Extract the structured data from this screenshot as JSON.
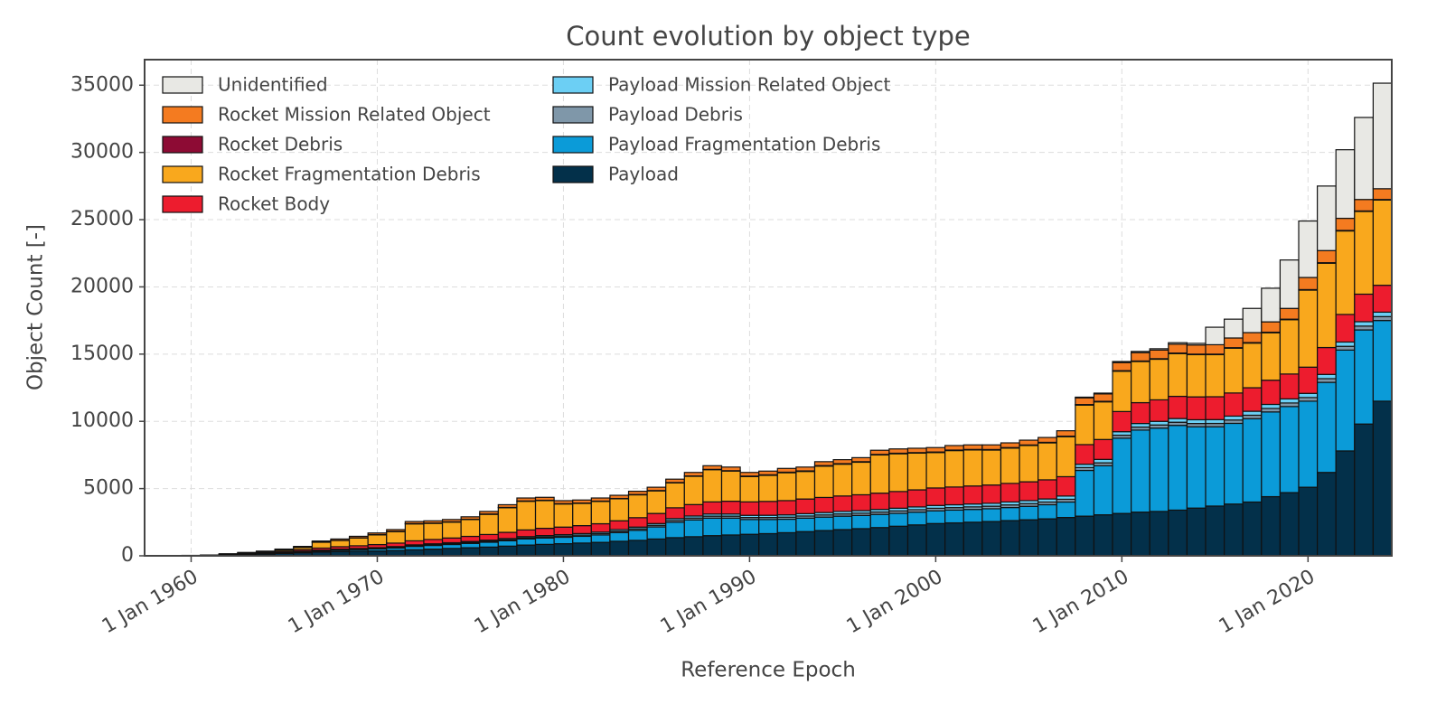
{
  "chart_data": {
    "type": "stacked_bar",
    "title": "Count evolution by object type",
    "xlabel": "Reference Epoch",
    "ylabel": "Object Count [-]",
    "x": [
      1958,
      1959,
      1960,
      1961,
      1962,
      1963,
      1964,
      1965,
      1966,
      1967,
      1968,
      1969,
      1970,
      1971,
      1972,
      1973,
      1974,
      1975,
      1976,
      1977,
      1978,
      1979,
      1980,
      1981,
      1982,
      1983,
      1984,
      1985,
      1986,
      1987,
      1988,
      1989,
      1990,
      1991,
      1992,
      1993,
      1994,
      1995,
      1996,
      1997,
      1998,
      1999,
      2000,
      2001,
      2002,
      2003,
      2004,
      2005,
      2006,
      2007,
      2008,
      2009,
      2010,
      2011,
      2012,
      2013,
      2014,
      2015,
      2016,
      2017,
      2018,
      2019,
      2020,
      2021,
      2022,
      2023,
      2024
    ],
    "xlim": [
      1957.5,
      2024.5
    ],
    "xticks": [
      {
        "value": 1960,
        "label": "1 Jan 1960"
      },
      {
        "value": 1970,
        "label": "1 Jan 1970"
      },
      {
        "value": 1980,
        "label": "1 Jan 1980"
      },
      {
        "value": 1990,
        "label": "1 Jan 1990"
      },
      {
        "value": 2000,
        "label": "1 Jan 2000"
      },
      {
        "value": 2010,
        "label": "1 Jan 2010"
      },
      {
        "value": 2020,
        "label": "1 Jan 2020"
      }
    ],
    "ylim": [
      0,
      36900
    ],
    "yticks": [
      0,
      5000,
      10000,
      15000,
      20000,
      25000,
      30000,
      35000
    ],
    "grid": true,
    "legend": "upper left",
    "legend_ncol": 2,
    "series": [
      {
        "name": "Payload",
        "color": "#03304a",
        "values": [
          3,
          8,
          15,
          30,
          60,
          90,
          130,
          180,
          230,
          280,
          320,
          340,
          360,
          400,
          450,
          500,
          550,
          600,
          650,
          720,
          800,
          850,
          900,
          950,
          1000,
          1080,
          1150,
          1250,
          1350,
          1420,
          1500,
          1550,
          1600,
          1650,
          1720,
          1800,
          1880,
          1950,
          2020,
          2100,
          2200,
          2300,
          2400,
          2450,
          2500,
          2550,
          2620,
          2680,
          2750,
          2850,
          2950,
          3050,
          3150,
          3250,
          3300,
          3400,
          3550,
          3700,
          3850,
          4000,
          4400,
          4700,
          5100,
          6200,
          7800,
          9800,
          11500
        ]
      },
      {
        "name": "Payload Fragmentation Debris",
        "color": "#0b9bd8",
        "values": [
          0,
          0,
          0,
          0,
          10,
          20,
          30,
          40,
          60,
          80,
          100,
          120,
          150,
          180,
          250,
          270,
          290,
          320,
          360,
          400,
          450,
          470,
          480,
          500,
          550,
          650,
          750,
          900,
          1150,
          1250,
          1300,
          1250,
          1100,
          1050,
          1000,
          1000,
          1000,
          1000,
          980,
          980,
          960,
          950,
          950,
          950,
          950,
          950,
          970,
          1000,
          1050,
          1150,
          3400,
          3650,
          5600,
          6100,
          6200,
          6300,
          6050,
          5900,
          6000,
          6200,
          6300,
          6400,
          6400,
          6700,
          7500,
          7000,
          6000
        ]
      },
      {
        "name": "Payload Debris",
        "color": "#7f97a9",
        "values": [
          0,
          0,
          0,
          0,
          0,
          0,
          5,
          10,
          20,
          25,
          30,
          35,
          40,
          45,
          50,
          55,
          60,
          65,
          70,
          75,
          80,
          85,
          90,
          95,
          100,
          105,
          110,
          120,
          130,
          140,
          150,
          150,
          150,
          150,
          155,
          160,
          160,
          165,
          170,
          175,
          180,
          180,
          185,
          185,
          190,
          190,
          195,
          200,
          200,
          205,
          210,
          215,
          220,
          225,
          230,
          235,
          240,
          245,
          250,
          255,
          260,
          265,
          270,
          275,
          280,
          285,
          290
        ]
      },
      {
        "name": "Payload Mission Related Object",
        "color": "#6ccff4",
        "values": [
          2,
          4,
          6,
          10,
          15,
          20,
          25,
          30,
          35,
          40,
          45,
          50,
          55,
          60,
          65,
          70,
          75,
          80,
          85,
          90,
          95,
          100,
          105,
          110,
          115,
          120,
          125,
          130,
          140,
          150,
          160,
          160,
          160,
          165,
          170,
          175,
          180,
          185,
          190,
          195,
          200,
          205,
          210,
          212,
          214,
          216,
          220,
          225,
          230,
          240,
          250,
          255,
          260,
          265,
          270,
          275,
          280,
          285,
          290,
          295,
          300,
          305,
          310,
          315,
          320,
          325,
          330
        ]
      },
      {
        "name": "Rocket Body",
        "color": "#ed1c2e",
        "values": [
          2,
          4,
          8,
          15,
          30,
          50,
          70,
          90,
          120,
          150,
          180,
          200,
          230,
          260,
          300,
          320,
          350,
          380,
          420,
          460,
          500,
          540,
          560,
          590,
          620,
          650,
          700,
          750,
          800,
          850,
          900,
          950,
          1000,
          1030,
          1060,
          1090,
          1120,
          1150,
          1180,
          1210,
          1240,
          1270,
          1300,
          1320,
          1340,
          1360,
          1380,
          1400,
          1420,
          1440,
          1460,
          1480,
          1500,
          1550,
          1600,
          1650,
          1700,
          1700,
          1720,
          1750,
          1800,
          1850,
          1950,
          2000,
          2050,
          2050,
          2000
        ]
      },
      {
        "name": "Rocket Fragmentation Debris",
        "color": "#f9a81d",
        "values": [
          0,
          0,
          0,
          0,
          15,
          40,
          50,
          100,
          165,
          435,
          465,
          585,
          720,
          850,
          1260,
          1200,
          1180,
          1250,
          1500,
          1830,
          2130,
          2060,
          1720,
          1655,
          1660,
          1635,
          1700,
          1680,
          1855,
          2105,
          2395,
          2245,
          1880,
          1940,
          2075,
          2050,
          2330,
          2365,
          2420,
          2840,
          2810,
          2730,
          2635,
          2708,
          2676,
          2599,
          2625,
          2700,
          2750,
          2975,
          2940,
          2800,
          3000,
          3060,
          3020,
          3180,
          3140,
          3130,
          3330,
          3320,
          3530,
          4040,
          5730,
          6270,
          6210,
          6150,
          6340
        ]
      },
      {
        "name": "Rocket Debris",
        "color": "#8d0b34",
        "values": [
          0,
          0,
          0,
          0,
          10,
          10,
          10,
          10,
          10,
          10,
          10,
          10,
          25,
          25,
          25,
          25,
          25,
          25,
          25,
          25,
          25,
          25,
          25,
          25,
          25,
          25,
          25,
          25,
          25,
          25,
          25,
          25,
          40,
          40,
          40,
          40,
          40,
          40,
          40,
          40,
          40,
          40,
          40,
          40,
          40,
          40,
          40,
          40,
          40,
          40,
          40,
          40,
          40,
          40,
          40,
          40,
          40,
          40,
          40,
          40,
          40,
          40,
          40,
          40,
          40,
          40,
          40
        ]
      },
      {
        "name": "Rocket Mission Related Object",
        "color": "#f47b20",
        "values": [
          0,
          1,
          2,
          5,
          10,
          20,
          30,
          40,
          60,
          80,
          100,
          110,
          120,
          130,
          150,
          160,
          170,
          180,
          190,
          200,
          220,
          220,
          220,
          225,
          230,
          235,
          240,
          245,
          250,
          260,
          270,
          270,
          270,
          275,
          280,
          285,
          290,
          295,
          300,
          310,
          320,
          325,
          330,
          335,
          340,
          345,
          350,
          355,
          360,
          400,
          500,
          550,
          600,
          620,
          640,
          660,
          680,
          700,
          720,
          740,
          770,
          800,
          900,
          900,
          900,
          850,
          800
        ]
      },
      {
        "name": "Unidentified",
        "color": "#e8e8e4",
        "values": [
          0,
          0,
          0,
          0,
          0,
          0,
          0,
          0,
          0,
          0,
          0,
          0,
          0,
          0,
          0,
          0,
          0,
          0,
          0,
          0,
          0,
          0,
          0,
          0,
          0,
          0,
          0,
          0,
          0,
          0,
          0,
          0,
          0,
          0,
          0,
          0,
          0,
          0,
          0,
          0,
          0,
          0,
          0,
          0,
          0,
          0,
          0,
          0,
          0,
          0,
          50,
          60,
          80,
          90,
          100,
          110,
          120,
          1300,
          1400,
          1800,
          2500,
          3600,
          4200,
          4800,
          5100,
          6100,
          7850
        ]
      }
    ]
  }
}
